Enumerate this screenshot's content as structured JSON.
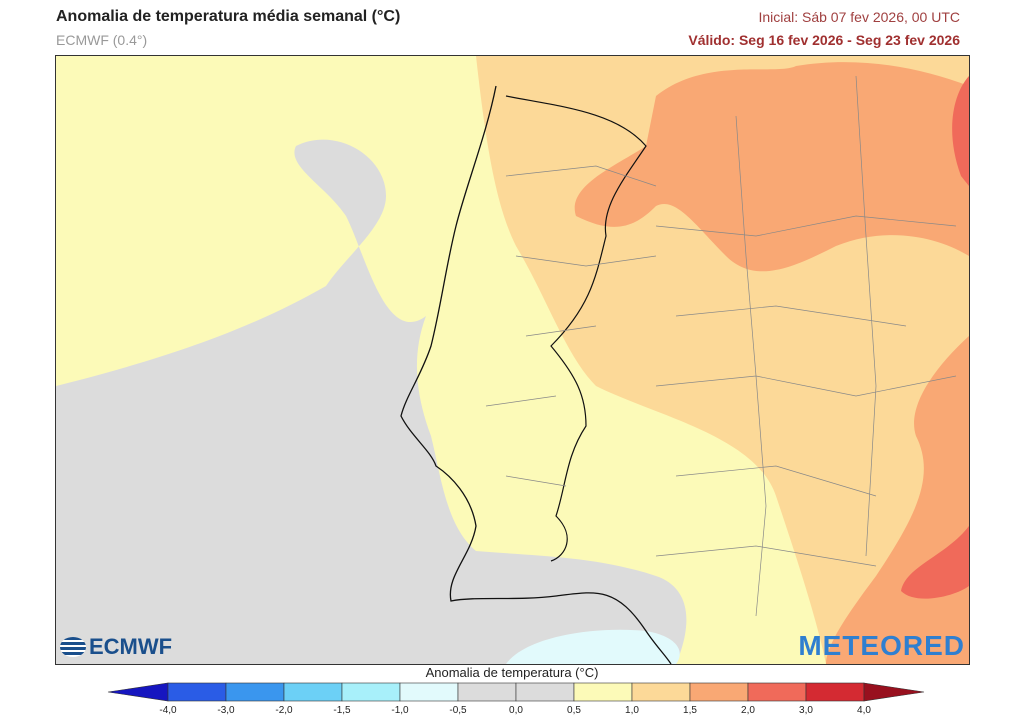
{
  "header": {
    "title": "Anomalia de temperatura média semanal (°C)",
    "model": "ECMWF (0.4°)",
    "initial": "Inicial: Sáb 07 fev 2026, 00 UTC",
    "valid": "Válido: Seg 16 fev 2026 - Seg 23 fev 2026"
  },
  "logos": {
    "left": "ECMWF",
    "right": "METEORED"
  },
  "colorbar": {
    "title": "Anomalia de temperatura (°C)",
    "ticks": [
      "-4,0",
      "-3,0",
      "-2,0",
      "-1,5",
      "-1,0",
      "-0,5",
      "0,0",
      "0,5",
      "1,0",
      "1,5",
      "2,0",
      "3,0",
      "4,0"
    ],
    "under_color": "#1616c0",
    "colors": [
      "#2a5ce6",
      "#3a96ee",
      "#6cd0f6",
      "#a8f0fa",
      "#e2fafc",
      "#dcdcdc",
      "#dcdcdc",
      "#fcfab8",
      "#fcd998",
      "#f9a874",
      "#f06a5a",
      "#d42a32"
    ],
    "over_color": "#98101e"
  },
  "map": {
    "region": "Portugal / western Iberia",
    "colors": {
      "sea": "#fcfab8",
      "neutral": "#dcdcdc",
      "warm1": "#fcd998",
      "warm2": "#f9a874",
      "warm3": "#f06a5a",
      "cool": "#e2fafc"
    }
  }
}
